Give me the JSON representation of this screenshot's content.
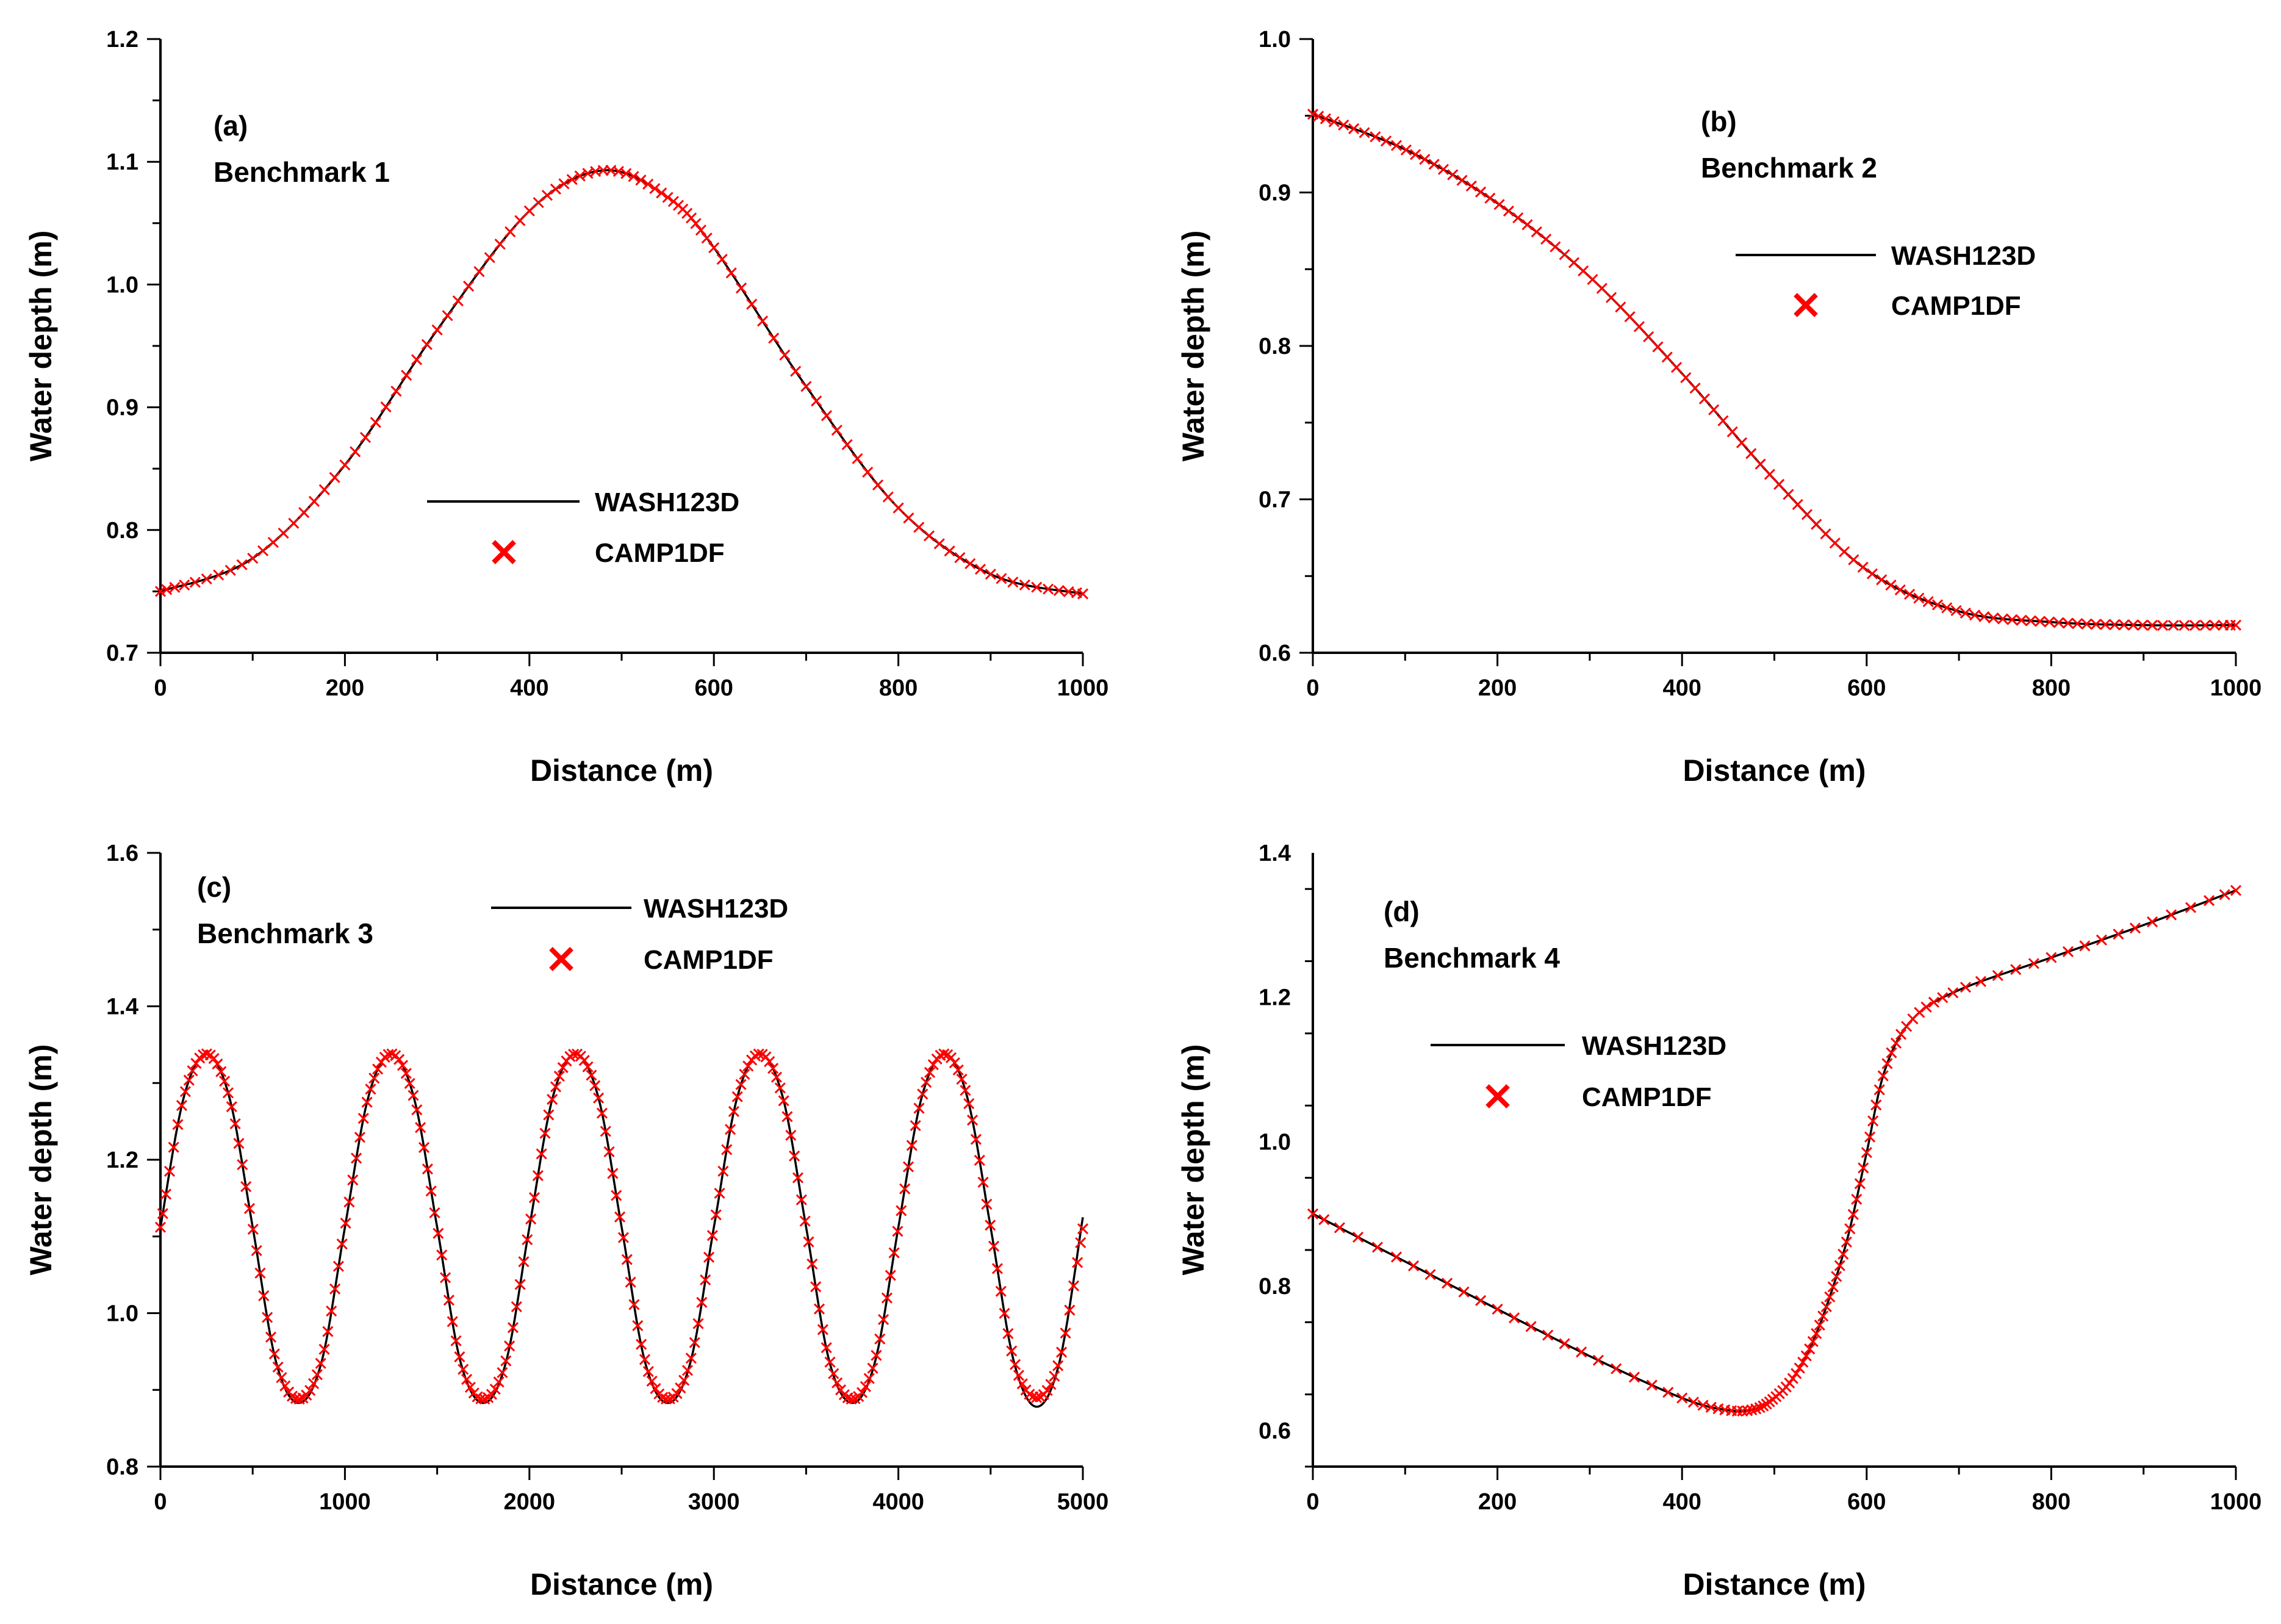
{
  "figure": {
    "description_panels": 4
  },
  "colors": {
    "wash_line": "#000000",
    "camp_marker": "#ff0000",
    "axis": "#000000"
  },
  "chart_data": [
    {
      "type": "line",
      "panel": "(a)",
      "title": "Benchmark 1",
      "xlabel": "Distance (m)",
      "ylabel": "Water depth (m)",
      "xlim": [
        0,
        1000
      ],
      "ylim": [
        0.7,
        1.2
      ],
      "xticks": [
        0,
        200,
        400,
        600,
        800,
        1000
      ],
      "yticks": [
        0.7,
        0.8,
        0.9,
        1.0,
        1.1,
        1.2
      ],
      "ytick_decimals": 1,
      "legend": {
        "position": "center",
        "entries": [
          "WASH123D",
          "CAMP1DF"
        ]
      },
      "series": [
        {
          "name": "WASH123D",
          "style": "line",
          "x": [
            0,
            100,
            200,
            300,
            400,
            480,
            550,
            600,
            700,
            800,
            900,
            1000
          ],
          "y": [
            0.75,
            0.777,
            0.853,
            0.963,
            1.06,
            1.093,
            1.071,
            1.03,
            0.917,
            0.818,
            0.764,
            0.748
          ]
        },
        {
          "name": "CAMP1DF",
          "style": "marker-x",
          "x": [
            0,
            100,
            200,
            300,
            400,
            480,
            550,
            600,
            700,
            800,
            900,
            1000
          ],
          "y": [
            0.75,
            0.777,
            0.853,
            0.963,
            1.06,
            1.093,
            1.071,
            1.03,
            0.917,
            0.818,
            0.764,
            0.748
          ]
        }
      ]
    },
    {
      "type": "line",
      "panel": "(b)",
      "title": "Benchmark 2",
      "xlabel": "Distance (m)",
      "ylabel": "Water depth (m)",
      "xlim": [
        0,
        1000
      ],
      "ylim": [
        0.6,
        1.0
      ],
      "xticks": [
        0,
        200,
        400,
        600,
        800,
        1000
      ],
      "yticks": [
        0.6,
        0.7,
        0.8,
        0.9,
        1.0
      ],
      "ytick_decimals": 1,
      "legend": {
        "position": "top-right",
        "entries": [
          "WASH123D",
          "CAMP1DF"
        ]
      },
      "series": [
        {
          "name": "WASH123D",
          "style": "line",
          "x": [
            0,
            100,
            200,
            300,
            400,
            500,
            600,
            700,
            800,
            900,
            1000
          ],
          "y": [
            0.951,
            0.928,
            0.893,
            0.845,
            0.782,
            0.713,
            0.654,
            0.627,
            0.62,
            0.618,
            0.618
          ]
        },
        {
          "name": "CAMP1DF",
          "style": "marker-x",
          "x": [
            0,
            100,
            200,
            300,
            400,
            500,
            600,
            700,
            800,
            900,
            1000
          ],
          "y": [
            0.951,
            0.928,
            0.893,
            0.845,
            0.782,
            0.713,
            0.654,
            0.627,
            0.62,
            0.618,
            0.618
          ]
        }
      ]
    },
    {
      "type": "line",
      "panel": "(c)",
      "title": "Benchmark 3",
      "xlabel": "Distance (m)",
      "ylabel": "Water depth (m)",
      "xlim": [
        0,
        5000
      ],
      "ylim": [
        0.8,
        1.6
      ],
      "xticks": [
        0,
        1000,
        2000,
        3000,
        4000,
        5000
      ],
      "yticks": [
        0.8,
        1.0,
        1.2,
        1.4,
        1.6
      ],
      "ytick_decimals": 1,
      "legend": {
        "position": "top-center",
        "entries": [
          "WASH123D",
          "CAMP1DF"
        ]
      },
      "series": [
        {
          "name": "WASH123D",
          "style": "line",
          "x": [
            0,
            125,
            250,
            375,
            500,
            625,
            750,
            875,
            1000,
            1125,
            1250,
            1375,
            1500,
            1625,
            1750,
            1875,
            2000,
            2125,
            2250,
            2375,
            2500,
            2625,
            2750,
            2875,
            3000,
            3125,
            3250,
            3375,
            3500,
            3625,
            3750,
            3875,
            4000,
            4125,
            4250,
            4375,
            4500,
            4625,
            4750,
            4875,
            5000
          ],
          "y": [
            1.112,
            1.28,
            1.338,
            1.28,
            1.112,
            0.938,
            0.883,
            0.938,
            1.112,
            1.28,
            1.338,
            1.28,
            1.112,
            0.938,
            0.883,
            0.938,
            1.112,
            1.28,
            1.338,
            1.28,
            1.112,
            0.938,
            0.883,
            0.938,
            1.112,
            1.28,
            1.338,
            1.28,
            1.112,
            0.938,
            0.883,
            0.938,
            1.112,
            1.28,
            1.338,
            1.28,
            1.112,
            0.938,
            0.878,
            0.938,
            1.125
          ]
        },
        {
          "name": "CAMP1DF",
          "style": "marker-x",
          "x": [
            0,
            125,
            250,
            375,
            500,
            625,
            750,
            875,
            1000,
            1125,
            1250,
            1375,
            1500,
            1625,
            1750,
            1875,
            2000,
            2125,
            2250,
            2375,
            2500,
            2625,
            2750,
            2875,
            3000,
            3125,
            3250,
            3375,
            3500,
            3625,
            3750,
            3875,
            4000,
            4125,
            4250,
            4375,
            4500,
            4625,
            4750,
            4875,
            5000
          ],
          "y": [
            1.112,
            1.28,
            1.338,
            1.28,
            1.112,
            0.94,
            0.888,
            0.94,
            1.112,
            1.28,
            1.338,
            1.28,
            1.112,
            0.94,
            0.888,
            0.94,
            1.112,
            1.28,
            1.338,
            1.28,
            1.112,
            0.94,
            0.888,
            0.94,
            1.112,
            1.28,
            1.338,
            1.28,
            1.112,
            0.94,
            0.888,
            0.94,
            1.112,
            1.28,
            1.338,
            1.28,
            1.112,
            0.94,
            0.89,
            0.94,
            1.11
          ]
        }
      ]
    },
    {
      "type": "line",
      "panel": "(d)",
      "title": "Benchmark 4",
      "xlabel": "Distance (m)",
      "ylabel": "Water depth (m)",
      "xlim": [
        0,
        1000
      ],
      "ylim": [
        0.55,
        1.4
      ],
      "xticks": [
        0,
        200,
        400,
        600,
        800,
        1000
      ],
      "yticks": [
        0.6,
        0.8,
        1.0,
        1.2,
        1.4
      ],
      "ytick_decimals": 1,
      "legend": {
        "position": "top-left",
        "entries": [
          "WASH123D",
          "CAMP1DF"
        ]
      },
      "series": [
        {
          "name": "WASH123D",
          "style": "line",
          "x": [
            0,
            100,
            200,
            300,
            400,
            450,
            480,
            500,
            520,
            540,
            560,
            580,
            600,
            620,
            650,
            700,
            800,
            900,
            1000
          ],
          "y": [
            0.9,
            0.834,
            0.768,
            0.703,
            0.645,
            0.628,
            0.63,
            0.645,
            0.672,
            0.718,
            0.785,
            0.87,
            0.985,
            1.1,
            1.17,
            1.21,
            1.255,
            1.3,
            1.348
          ]
        },
        {
          "name": "CAMP1DF",
          "style": "marker-x",
          "x": [
            0,
            100,
            200,
            300,
            400,
            450,
            480,
            500,
            520,
            540,
            560,
            580,
            600,
            620,
            650,
            700,
            800,
            900,
            1000
          ],
          "y": [
            0.9,
            0.834,
            0.768,
            0.703,
            0.645,
            0.628,
            0.63,
            0.645,
            0.672,
            0.718,
            0.785,
            0.87,
            0.985,
            1.1,
            1.17,
            1.21,
            1.255,
            1.3,
            1.348
          ]
        }
      ]
    }
  ]
}
